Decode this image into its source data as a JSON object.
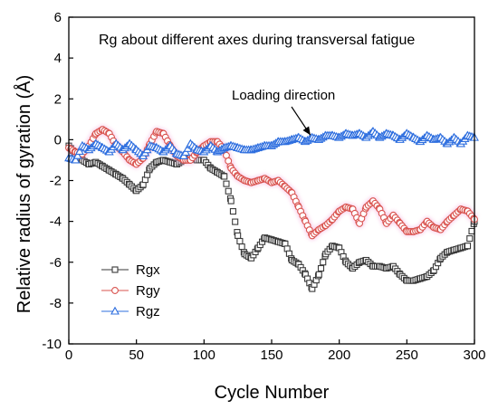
{
  "chart_data": {
    "type": "scatter",
    "title": "Rg about different axes during transversal fatigue",
    "xlabel": "Cycle Number",
    "ylabel": "Relative radius of gyration (Å)",
    "xlim": [
      0,
      300
    ],
    "ylim": [
      -10,
      6
    ],
    "x_ticks": [
      0,
      50,
      100,
      150,
      200,
      250,
      300
    ],
    "y_ticks": [
      6,
      4,
      2,
      0,
      -2,
      -4,
      -6,
      -8,
      -10
    ],
    "grid": false,
    "legend_position": "bottom-left",
    "annotations": [
      {
        "text": "Loading direction",
        "points_to": {
          "x": 180,
          "y": 0.05
        }
      }
    ],
    "series": [
      {
        "name": "Rgx",
        "color": "#3a3a3a",
        "marker": "square",
        "x": [
          0,
          5,
          10,
          15,
          20,
          25,
          30,
          35,
          40,
          45,
          50,
          55,
          60,
          65,
          70,
          75,
          80,
          85,
          90,
          95,
          100,
          105,
          110,
          115,
          120,
          125,
          130,
          135,
          140,
          145,
          150,
          155,
          160,
          165,
          170,
          175,
          180,
          185,
          190,
          195,
          200,
          205,
          210,
          215,
          220,
          225,
          230,
          235,
          240,
          245,
          250,
          255,
          260,
          265,
          270,
          275,
          280,
          285,
          290,
          295,
          300
        ],
        "y": [
          -0.3,
          -0.7,
          -1.0,
          -1.2,
          -1.1,
          -1.3,
          -1.5,
          -1.7,
          -1.9,
          -2.2,
          -2.5,
          -2.2,
          -1.4,
          -1.1,
          -1.0,
          -1.1,
          -1.2,
          -1.0,
          -0.9,
          -1.0,
          -1.0,
          -1.4,
          -1.6,
          -1.8,
          -3.0,
          -4.7,
          -5.6,
          -5.8,
          -5.3,
          -4.8,
          -4.9,
          -5.0,
          -5.1,
          -5.9,
          -6.1,
          -6.6,
          -7.3,
          -6.6,
          -5.6,
          -5.2,
          -5.3,
          -6.0,
          -6.3,
          -6.0,
          -5.9,
          -6.2,
          -6.2,
          -6.3,
          -6.2,
          -6.6,
          -6.9,
          -6.9,
          -6.8,
          -6.7,
          -6.4,
          -5.8,
          -5.5,
          -5.4,
          -5.3,
          -5.2,
          -4.0
        ]
      },
      {
        "name": "Rgy",
        "color": "#d9534f",
        "marker": "circle",
        "x": [
          0,
          5,
          10,
          15,
          20,
          25,
          30,
          35,
          40,
          45,
          50,
          55,
          60,
          65,
          70,
          75,
          80,
          85,
          90,
          95,
          100,
          105,
          110,
          115,
          120,
          125,
          130,
          135,
          140,
          145,
          150,
          155,
          160,
          165,
          170,
          175,
          180,
          185,
          190,
          195,
          200,
          205,
          210,
          215,
          220,
          225,
          230,
          235,
          240,
          245,
          250,
          255,
          260,
          265,
          270,
          275,
          280,
          285,
          290,
          295,
          300
        ],
        "y": [
          -0.4,
          -0.6,
          -0.7,
          -0.3,
          0.3,
          0.5,
          0.3,
          -0.3,
          -0.6,
          -1.0,
          -1.2,
          -0.9,
          -0.2,
          0.4,
          0.3,
          -0.3,
          -0.8,
          -1.0,
          -1.0,
          -0.6,
          -0.3,
          -0.1,
          -0.1,
          -0.5,
          -1.4,
          -1.8,
          -2.0,
          -2.1,
          -2.0,
          -1.9,
          -2.1,
          -2.0,
          -2.3,
          -2.6,
          -3.3,
          -4.0,
          -4.7,
          -4.4,
          -4.2,
          -3.9,
          -3.5,
          -3.3,
          -3.4,
          -4.1,
          -3.3,
          -3.0,
          -3.4,
          -4.1,
          -3.7,
          -4.1,
          -4.5,
          -4.5,
          -4.4,
          -4.0,
          -4.3,
          -4.4,
          -4.0,
          -3.7,
          -3.4,
          -3.5,
          -3.9
        ]
      },
      {
        "name": "Rgz",
        "color": "#2f6fdf",
        "marker": "triangle",
        "x": [
          0,
          5,
          10,
          15,
          20,
          25,
          30,
          35,
          40,
          45,
          50,
          55,
          60,
          65,
          70,
          75,
          80,
          85,
          90,
          95,
          100,
          105,
          110,
          115,
          120,
          125,
          130,
          135,
          140,
          145,
          150,
          155,
          160,
          165,
          170,
          175,
          180,
          185,
          190,
          195,
          200,
          205,
          210,
          215,
          220,
          225,
          230,
          235,
          240,
          245,
          250,
          255,
          260,
          265,
          270,
          275,
          280,
          285,
          290,
          295,
          300
        ],
        "y": [
          -0.9,
          -1.0,
          -0.3,
          -0.5,
          -0.2,
          -0.4,
          -0.6,
          -0.2,
          -0.5,
          -0.2,
          -0.5,
          -0.8,
          -0.3,
          -0.4,
          -0.6,
          -0.3,
          -0.7,
          -0.8,
          -0.2,
          -0.5,
          -0.6,
          -0.3,
          -0.6,
          -0.4,
          -0.3,
          -0.4,
          -0.5,
          -0.5,
          -0.4,
          -0.3,
          -0.3,
          -0.1,
          -0.1,
          0.0,
          0.1,
          -0.1,
          0.1,
          0.0,
          0.2,
          0.2,
          0.1,
          0.3,
          0.2,
          0.3,
          0.1,
          0.4,
          0.1,
          0.3,
          0.2,
          0.0,
          0.3,
          0.1,
          -0.1,
          0.2,
          0.0,
          0.1,
          -0.2,
          0.1,
          -0.2,
          0.2,
          0.1
        ]
      }
    ]
  }
}
